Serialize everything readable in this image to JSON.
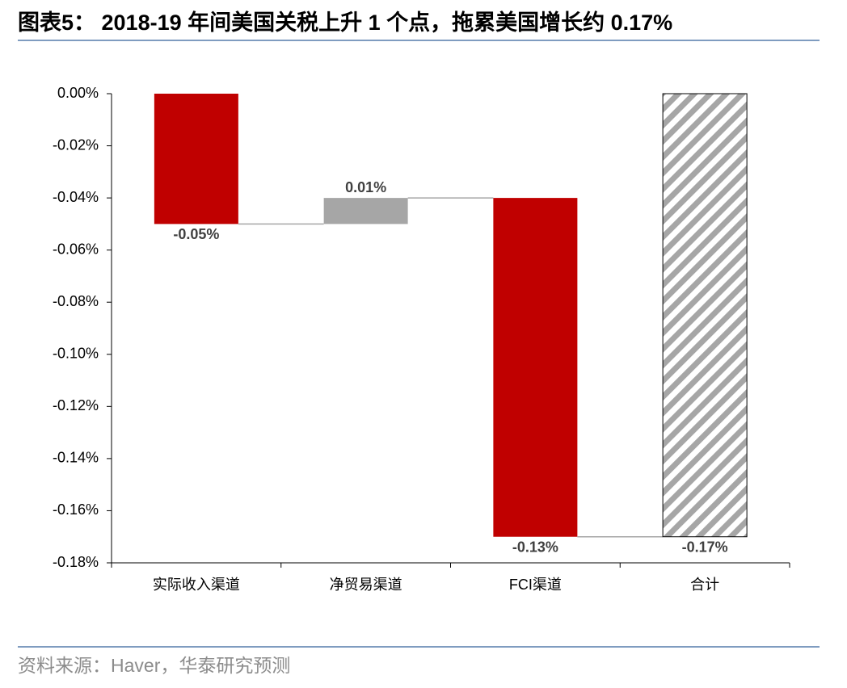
{
  "chart_data": {
    "type": "waterfall",
    "title": "图表5： 2018-19 年间美国关税上升 1 个点，拖累美国增长约 0.17%",
    "source": "资料来源：Haver，华泰研究预测",
    "categories": [
      "实际收入渠道",
      "净贸易渠道",
      "FCI渠道",
      "合计"
    ],
    "values": [
      -0.05,
      0.01,
      -0.13,
      -0.17
    ],
    "value_labels": [
      "-0.05%",
      "0.01%",
      "-0.13%",
      "-0.17%"
    ],
    "colors": [
      "#c00000",
      "#a6a6a6",
      "#c00000",
      "#a6a6a6"
    ],
    "ylim": [
      -0.18,
      0
    ],
    "yticks": [
      {
        "value": 0,
        "label": "0.00%"
      },
      {
        "value": -0.02,
        "label": "-0.02%"
      },
      {
        "value": -0.04,
        "label": "-0.04%"
      },
      {
        "value": -0.06,
        "label": "-0.06%"
      },
      {
        "value": -0.08,
        "label": "-0.08%"
      },
      {
        "value": -0.1,
        "label": "-0.10%"
      },
      {
        "value": -0.12,
        "label": "-0.12%"
      },
      {
        "value": -0.14,
        "label": "-0.14%"
      },
      {
        "value": -0.16,
        "label": "-0.16%"
      },
      {
        "value": -0.18,
        "label": "-0.18%"
      }
    ]
  }
}
